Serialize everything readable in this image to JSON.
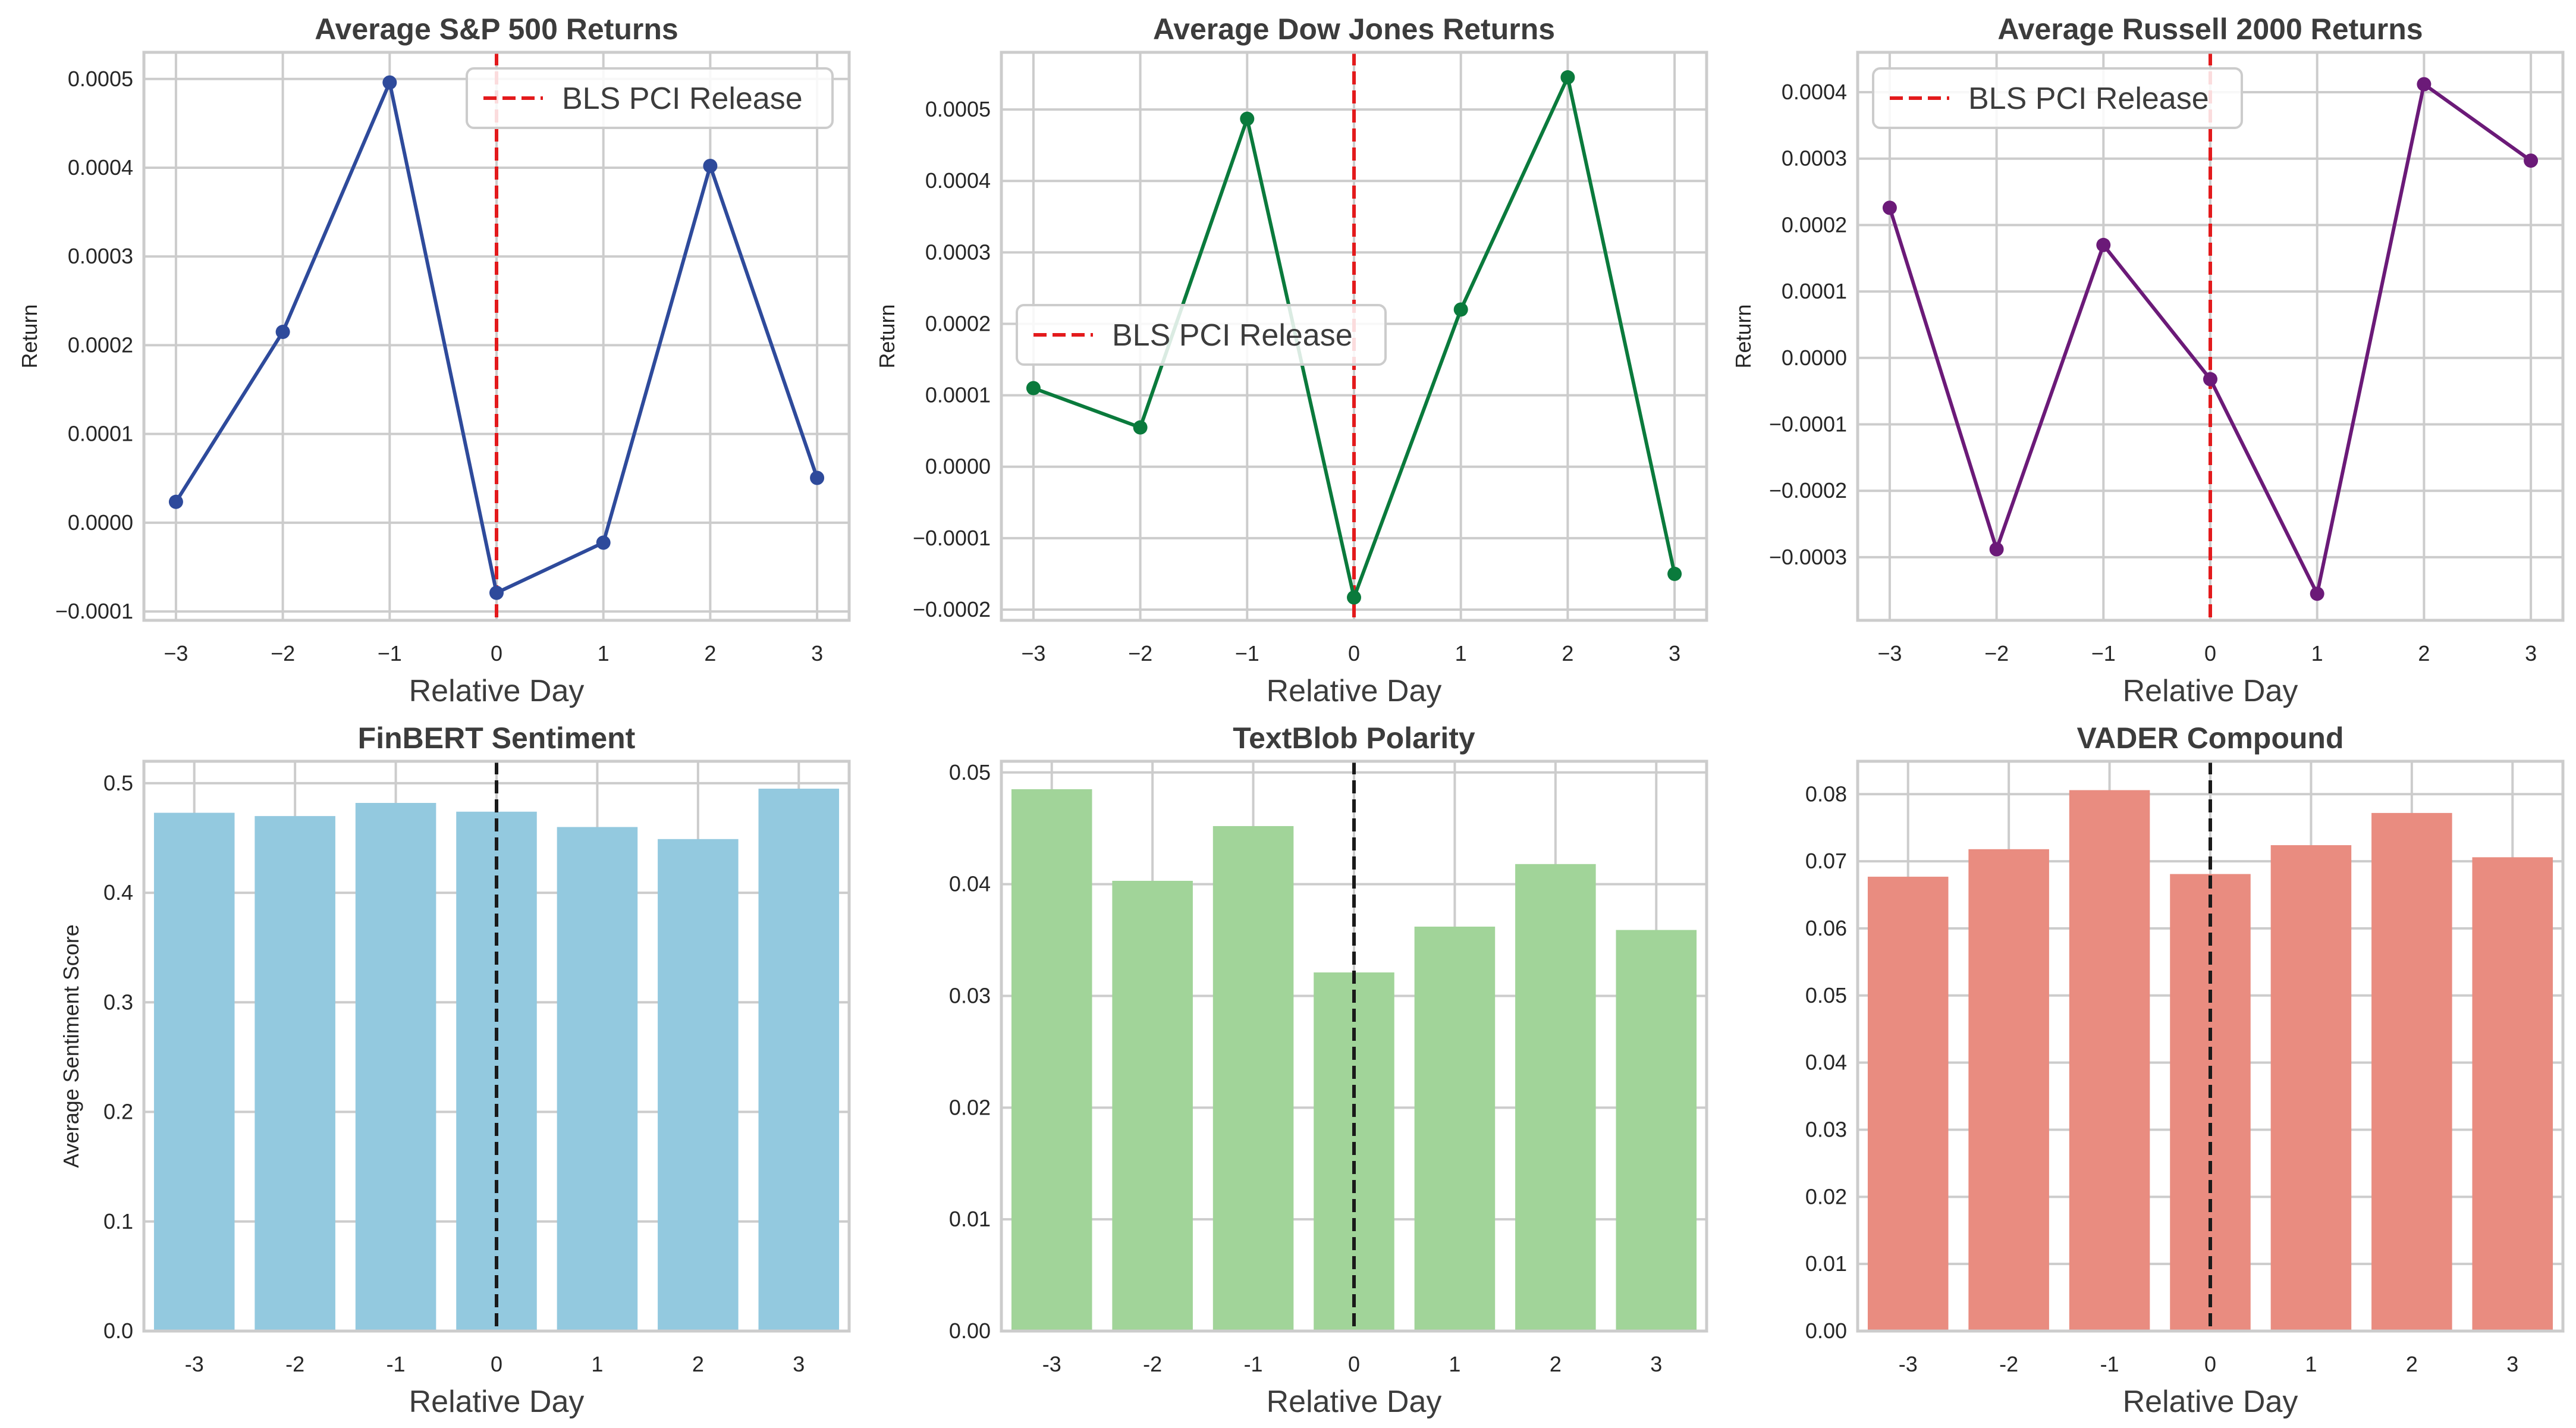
{
  "chart_data": [
    {
      "type": "line",
      "title": "Average S&P 500 Returns",
      "xlabel": "Relative Day",
      "ylabel": "Return",
      "x": [
        -3,
        -2,
        -1,
        0,
        1,
        2,
        3
      ],
      "series": [
        {
          "name": "S&P 500",
          "values": [
            2.35e-05,
            0.000215,
            0.000496,
            -7.9e-05,
            -2.25e-05,
            0.000402,
            5.05e-05
          ]
        }
      ],
      "color": "#2e4a9b",
      "ylim": [
        -0.00011,
        0.00053
      ],
      "yticks": [
        -0.0001,
        0.0,
        0.0001,
        0.0002,
        0.0003,
        0.0004,
        0.0005
      ],
      "ytick_labels": [
        "−0.0001",
        "0.0000",
        "0.0001",
        "0.0002",
        "0.0003",
        "0.0004",
        "0.0005"
      ],
      "xlim": [
        -3.3,
        3.3
      ],
      "xticks": [
        -3,
        -2,
        -1,
        0,
        1,
        2,
        3
      ],
      "xtick_labels": [
        "−3",
        "−2",
        "−1",
        "0",
        "1",
        "2",
        "3"
      ],
      "vline": {
        "x": 0,
        "color": "#e31a1c",
        "style": "dashed",
        "label": "BLS PCI Release"
      },
      "legend": "upper-right"
    },
    {
      "type": "line",
      "title": "Average Dow Jones Returns",
      "xlabel": "Relative Day",
      "ylabel": "Return",
      "x": [
        -3,
        -2,
        -1,
        0,
        1,
        2,
        3
      ],
      "series": [
        {
          "name": "Dow Jones",
          "values": [
            0.00011,
            5.5e-05,
            0.000487,
            -0.000183,
            0.00022,
            0.000545,
            -0.00015
          ]
        }
      ],
      "color": "#0a7a3c",
      "ylim": [
        -0.000215,
        0.00058
      ],
      "yticks": [
        -0.0002,
        -0.0001,
        0.0,
        0.0001,
        0.0002,
        0.0003,
        0.0004,
        0.0005
      ],
      "ytick_labels": [
        "−0.0002",
        "−0.0001",
        "0.0000",
        "0.0001",
        "0.0002",
        "0.0003",
        "0.0004",
        "0.0005"
      ],
      "xlim": [
        -3.3,
        3.3
      ],
      "xticks": [
        -3,
        -2,
        -1,
        0,
        1,
        2,
        3
      ],
      "xtick_labels": [
        "−3",
        "−2",
        "−1",
        "0",
        "1",
        "2",
        "3"
      ],
      "vline": {
        "x": 0,
        "color": "#e31a1c",
        "style": "dashed",
        "label": "BLS PCI Release"
      },
      "legend": "center-left"
    },
    {
      "type": "line",
      "title": "Average Russell 2000 Returns",
      "xlabel": "Relative Day",
      "ylabel": "Return",
      "x": [
        -3,
        -2,
        -1,
        0,
        1,
        2,
        3
      ],
      "series": [
        {
          "name": "Russell 2000",
          "values": [
            0.000226,
            -0.000288,
            0.00017,
            -3.2e-05,
            -0.000355,
            0.000412,
            0.000297
          ]
        }
      ],
      "color": "#6b1a78",
      "ylim": [
        -0.000395,
        0.00046
      ],
      "yticks": [
        -0.0003,
        -0.0002,
        -0.0001,
        0.0,
        0.0001,
        0.0002,
        0.0003,
        0.0004
      ],
      "ytick_labels": [
        "−0.0003",
        "−0.0002",
        "−0.0001",
        "0.0000",
        "0.0001",
        "0.0002",
        "0.0003",
        "0.0004"
      ],
      "xlim": [
        -3.3,
        3.3
      ],
      "xticks": [
        -3,
        -2,
        -1,
        0,
        1,
        2,
        3
      ],
      "xtick_labels": [
        "−3",
        "−2",
        "−1",
        "0",
        "1",
        "2",
        "3"
      ],
      "vline": {
        "x": 0,
        "color": "#e31a1c",
        "style": "dashed",
        "label": "BLS PCI Release"
      },
      "legend": "upper-left"
    },
    {
      "type": "bar",
      "title": "FinBERT Sentiment",
      "xlabel": "Relative Day",
      "ylabel": "Average Sentiment Score",
      "categories": [
        "-3",
        "-2",
        "-1",
        "0",
        "1",
        "2",
        "3"
      ],
      "values": [
        0.473,
        0.47,
        0.482,
        0.474,
        0.46,
        0.449,
        0.495
      ],
      "color": "#93c9df",
      "ylim": [
        0,
        0.52
      ],
      "yticks": [
        0.0,
        0.1,
        0.2,
        0.3,
        0.4,
        0.5
      ],
      "ytick_labels": [
        "0.0",
        "0.1",
        "0.2",
        "0.3",
        "0.4",
        "0.5"
      ],
      "vline": {
        "x": 0,
        "color": "#1a1a1a",
        "style": "dashed"
      }
    },
    {
      "type": "bar",
      "title": "TextBlob Polarity",
      "xlabel": "Relative Day",
      "ylabel": "",
      "categories": [
        "-3",
        "-2",
        "-1",
        "0",
        "1",
        "2",
        "3"
      ],
      "values": [
        0.0485,
        0.0403,
        0.0452,
        0.0321,
        0.0362,
        0.0418,
        0.0359
      ],
      "color": "#a1d499",
      "ylim": [
        0,
        0.051
      ],
      "yticks": [
        0.0,
        0.01,
        0.02,
        0.03,
        0.04,
        0.05
      ],
      "ytick_labels": [
        "0.00",
        "0.01",
        "0.02",
        "0.03",
        "0.04",
        "0.05"
      ],
      "vline": {
        "x": 0,
        "color": "#1a1a1a",
        "style": "dashed"
      }
    },
    {
      "type": "bar",
      "title": "VADER Compound",
      "xlabel": "Relative Day",
      "ylabel": "",
      "categories": [
        "-3",
        "-2",
        "-1",
        "0",
        "1",
        "2",
        "3"
      ],
      "values": [
        0.0677,
        0.0718,
        0.0806,
        0.0681,
        0.0724,
        0.0772,
        0.0706
      ],
      "color": "#e98c80",
      "ylim": [
        0,
        0.0849
      ],
      "yticks": [
        0.0,
        0.01,
        0.02,
        0.03,
        0.04,
        0.05,
        0.06,
        0.07,
        0.08
      ],
      "ytick_labels": [
        "0.00",
        "0.01",
        "0.02",
        "0.03",
        "0.04",
        "0.05",
        "0.06",
        "0.07",
        "0.08"
      ],
      "vline": {
        "x": 0,
        "color": "#1a1a1a",
        "style": "dashed"
      }
    }
  ]
}
